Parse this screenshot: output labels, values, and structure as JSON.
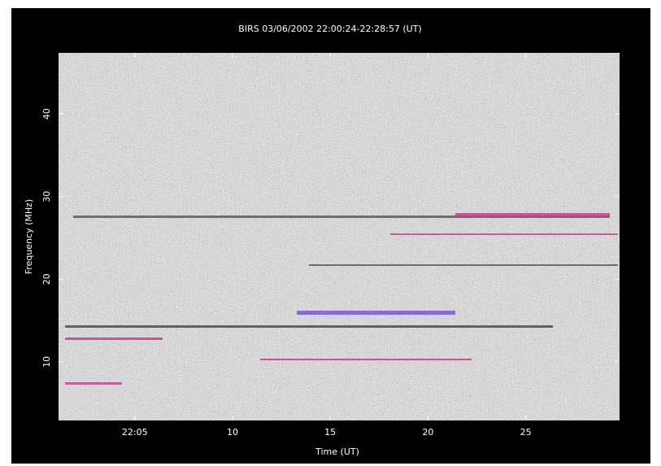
{
  "chart_data": {
    "type": "spectrogram",
    "title": "BIRS 03/06/2002 22:00:24-22:28:57 (UT)",
    "x_label": "Time (UT)",
    "y_label": "Frequency (MHz)",
    "xlim": [
      1.1,
      29.8
    ],
    "xticks": [
      {
        "value": 5,
        "label": "22:05"
      },
      {
        "value": 10,
        "label": "10"
      },
      {
        "value": 15,
        "label": "15"
      },
      {
        "value": 20,
        "label": "20"
      },
      {
        "value": 25,
        "label": "25"
      }
    ],
    "ylim": [
      2.9,
      47.4
    ],
    "yticks": [
      10,
      20,
      30,
      40
    ]
  }
}
